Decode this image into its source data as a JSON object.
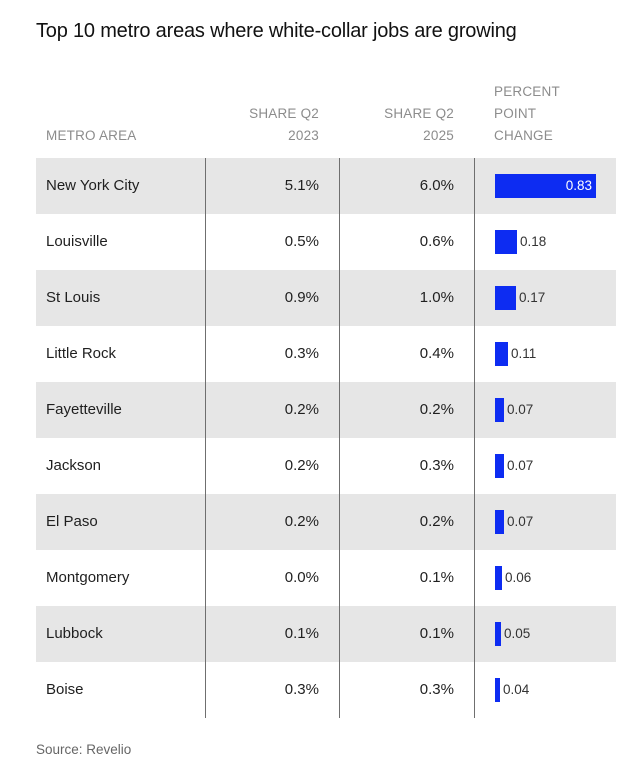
{
  "title": "Top 10 metro areas where white-collar jobs are growing",
  "headers": {
    "metro": "METRO AREA",
    "q2023": [
      "SHARE Q2",
      "2023"
    ],
    "q2025": [
      "SHARE Q2",
      "2025"
    ],
    "change": [
      "PERCENT",
      "POINT",
      "CHANGE"
    ]
  },
  "source": "Source: Revelio",
  "colors": {
    "bar": "#0d2cf2",
    "shade": "#e6e6e6",
    "divider": "#6f6f6f"
  },
  "chart_data": {
    "type": "table",
    "columns": [
      "METRO AREA",
      "SHARE Q2 2023",
      "SHARE Q2 2025",
      "PERCENT POINT CHANGE"
    ],
    "rows": [
      {
        "metro": "New York City",
        "q2023": "5.1%",
        "q2025": "6.0%",
        "change": 0.83,
        "change_label": "0.83"
      },
      {
        "metro": "Louisville",
        "q2023": "0.5%",
        "q2025": "0.6%",
        "change": 0.18,
        "change_label": "0.18"
      },
      {
        "metro": "St Louis",
        "q2023": "0.9%",
        "q2025": "1.0%",
        "change": 0.17,
        "change_label": "0.17"
      },
      {
        "metro": "Little Rock",
        "q2023": "0.3%",
        "q2025": "0.4%",
        "change": 0.11,
        "change_label": "0.11"
      },
      {
        "metro": "Fayetteville",
        "q2023": "0.2%",
        "q2025": "0.2%",
        "change": 0.07,
        "change_label": "0.07"
      },
      {
        "metro": "Jackson",
        "q2023": "0.2%",
        "q2025": "0.3%",
        "change": 0.07,
        "change_label": "0.07"
      },
      {
        "metro": "El Paso",
        "q2023": "0.2%",
        "q2025": "0.2%",
        "change": 0.07,
        "change_label": "0.07"
      },
      {
        "metro": "Montgomery",
        "q2023": "0.0%",
        "q2025": "0.1%",
        "change": 0.06,
        "change_label": "0.06"
      },
      {
        "metro": "Lubbock",
        "q2023": "0.1%",
        "q2025": "0.1%",
        "change": 0.05,
        "change_label": "0.05"
      },
      {
        "metro": "Boise",
        "q2023": "0.3%",
        "q2025": "0.3%",
        "change": 0.04,
        "change_label": "0.04"
      }
    ]
  }
}
